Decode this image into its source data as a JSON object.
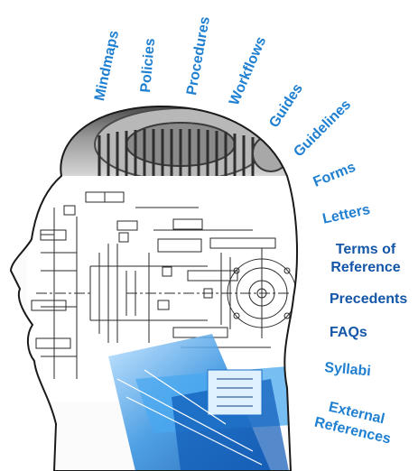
{
  "topics": [
    {
      "label": "Mindmaps"
    },
    {
      "label": "Policies"
    },
    {
      "label": "Procedures"
    },
    {
      "label": "Workflows"
    },
    {
      "label": "Guides"
    },
    {
      "label": "Guidelines"
    },
    {
      "label": "Forms"
    },
    {
      "label": "Letters"
    },
    {
      "label": "Terms of",
      "label2": "Reference"
    },
    {
      "label": "Precedents"
    },
    {
      "label": "FAQs"
    },
    {
      "label": "Syllabi"
    },
    {
      "label": "External",
      "label2": "References"
    }
  ],
  "colors": {
    "label": "#1f7fd0",
    "label_dark": "#1456a8",
    "gear": "#6f6f6f",
    "blueprint_line": "#222222",
    "blue_tool": "#2f8fe0"
  },
  "icons": [
    "head-silhouette",
    "gear-icon",
    "blueprint-drawing",
    "drafting-tools"
  ]
}
